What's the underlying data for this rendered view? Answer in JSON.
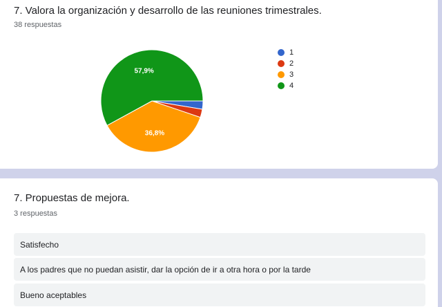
{
  "question1": {
    "title": "7. Valora la organización y desarrollo de las reuniones trimestrales.",
    "responses": "38 respuestas"
  },
  "chart_data": {
    "type": "pie",
    "labels": [
      "1",
      "2",
      "3",
      "4"
    ],
    "values": [
      2.6,
      2.6,
      36.8,
      57.9
    ],
    "colors": [
      "#3366cc",
      "#dc3912",
      "#ff9900",
      "#109618"
    ],
    "data_labels": [
      "",
      "",
      "36,8%",
      "57,9%"
    ],
    "legend": "right"
  },
  "question2": {
    "title": "7. Propuestas de mejora.",
    "responses": "3 respuestas",
    "answers": [
      "Satisfecho",
      "A los padres que no puedan asistir, dar la opción de ir a otra hora o por la tarde",
      "Bueno aceptables"
    ]
  }
}
